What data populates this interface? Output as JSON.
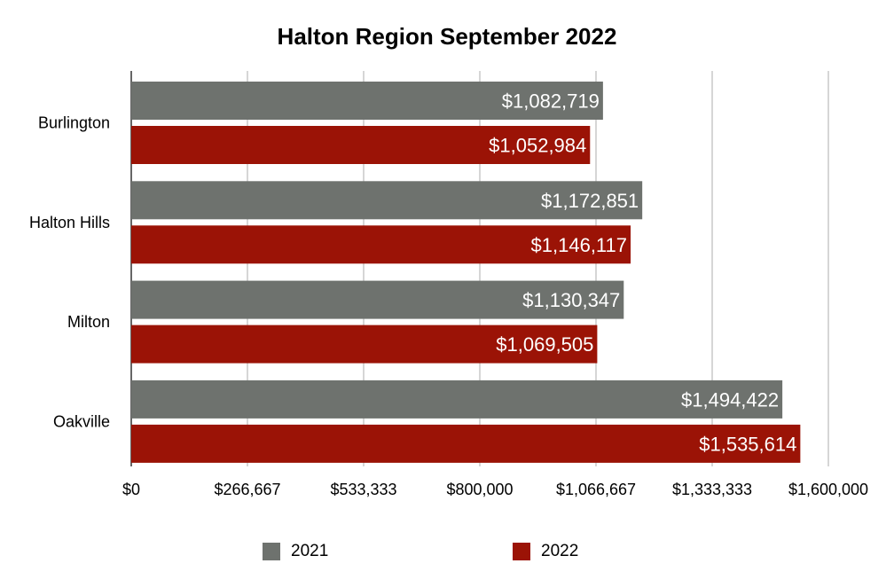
{
  "chart_data": {
    "type": "bar",
    "orientation": "horizontal",
    "title": "Halton Region September 2022",
    "categories": [
      "Burlington",
      "Halton Hills",
      "Milton",
      "Oakville"
    ],
    "series": [
      {
        "name": "2021",
        "color": "#6e726e",
        "values": [
          1082719,
          1172851,
          1130347,
          1494422
        ],
        "labels": [
          "$1,082,719",
          "$1,172,851",
          "$1,130,347",
          "$1,494,422"
        ]
      },
      {
        "name": "2022",
        "color": "#9b1306",
        "values": [
          1052984,
          1146117,
          1069505,
          1535614
        ],
        "labels": [
          "$1,052,984",
          "$1,146,117",
          "$1,069,505",
          "$1,535,614"
        ]
      }
    ],
    "xlim": [
      0,
      1600000
    ],
    "x_ticks": [
      0,
      266667,
      533333,
      800000,
      1066667,
      1333333,
      1600000
    ],
    "x_tick_labels": [
      "$0",
      "$266,667",
      "$533,333",
      "$800,000",
      "$1,066,667",
      "$1,333,333",
      "$1,600,000"
    ],
    "grid": true,
    "legend_position": "bottom"
  }
}
